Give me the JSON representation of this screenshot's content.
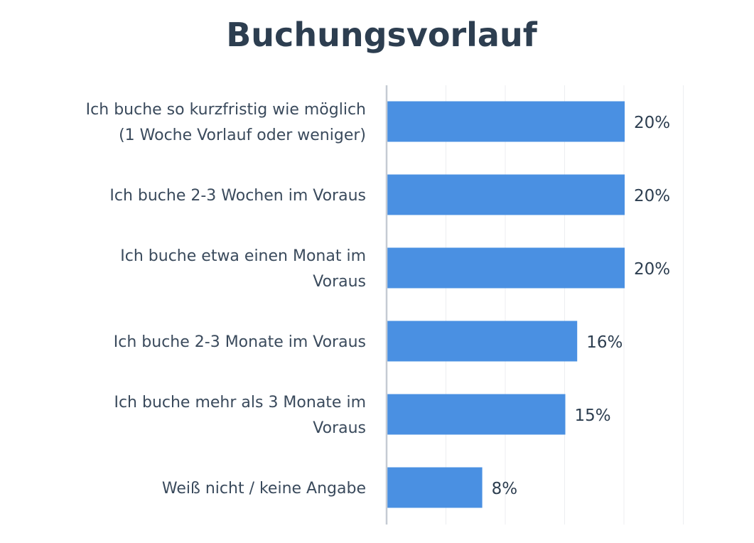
{
  "chart_data": {
    "type": "bar",
    "orientation": "horizontal",
    "title": "Buchungsvorlauf",
    "categories": [
      [
        "Ich buche so kurzfristig wie möglich",
        "(1 Woche Vorlauf oder weniger)"
      ],
      [
        "Ich buche 2-3 Wochen im Voraus"
      ],
      [
        "Ich buche etwa einen Monat im",
        "Voraus"
      ],
      [
        "Ich buche 2-3 Monate im Voraus"
      ],
      [
        "Ich buche mehr als 3 Monate im",
        "Voraus"
      ],
      [
        "Weiß nicht / keine Angabe"
      ]
    ],
    "values": [
      20,
      20,
      20,
      16,
      15,
      8
    ],
    "value_labels": [
      "20%",
      "20%",
      "20%",
      "16%",
      "15%",
      "8%"
    ],
    "xlim": [
      0,
      25
    ],
    "grid": true,
    "bar_color": "#4a90e2",
    "grid_color": "#eceef1",
    "axis_color": "#c5cbd3",
    "title_color": "#2d3e50",
    "text_color": "#3a4a5c"
  }
}
